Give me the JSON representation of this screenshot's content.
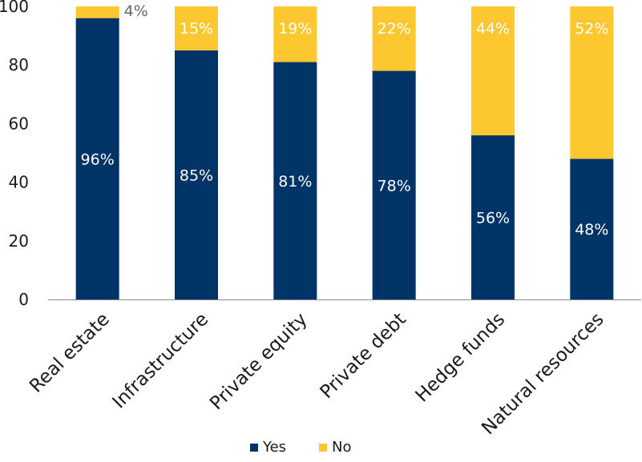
{
  "chart_data": {
    "type": "bar",
    "stacked": true,
    "orientation": "vertical",
    "title": "",
    "xlabel": "",
    "ylabel": "",
    "categories": [
      "Real estate",
      "Infrastructure",
      "Private equity",
      "Private debt",
      "Hedge funds",
      "Natural resources"
    ],
    "series": [
      {
        "name": "Yes",
        "values": [
          96,
          85,
          81,
          78,
          56,
          48
        ],
        "color": "#003366",
        "labels": [
          "96%",
          "85%",
          "81%",
          "78%",
          "56%",
          "48%"
        ]
      },
      {
        "name": "No",
        "values": [
          4,
          15,
          19,
          22,
          44,
          52
        ],
        "color": "#fdc82f",
        "labels": [
          "4%",
          "15%",
          "19%",
          "22%",
          "44%",
          "52%"
        ]
      }
    ],
    "ylim": [
      0,
      100
    ],
    "yticks": [
      0,
      20,
      40,
      60,
      80,
      100
    ],
    "ytick_labels": [
      "0",
      "20",
      "40",
      "60",
      "80",
      "100"
    ],
    "grid": false,
    "legend_position": "bottom-center"
  }
}
